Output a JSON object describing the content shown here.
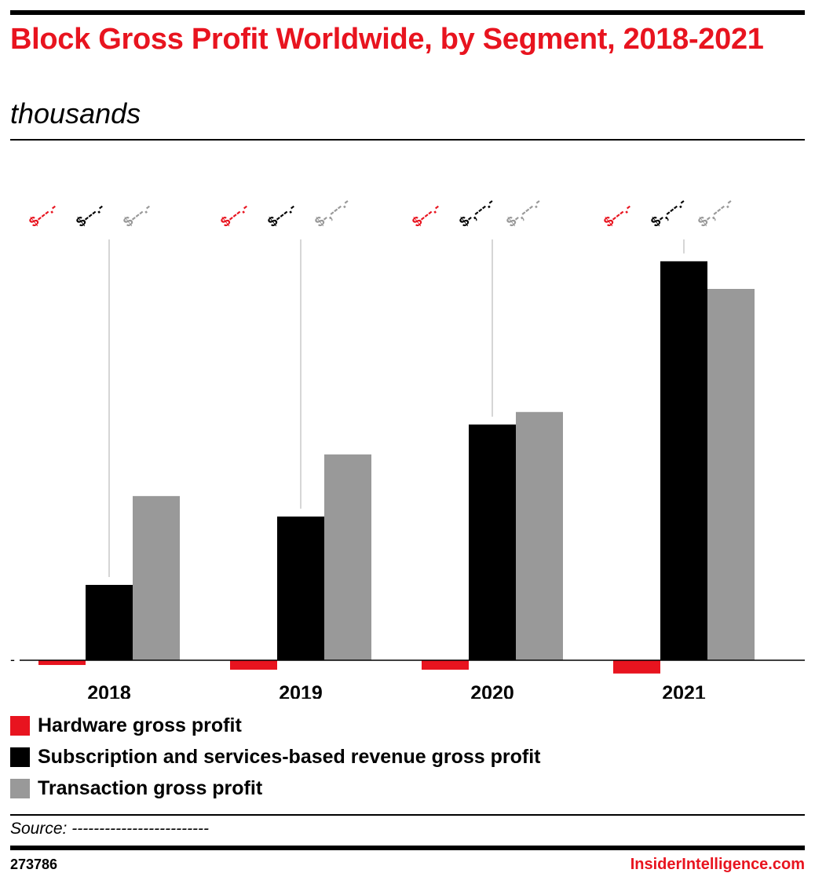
{
  "title": "Block Gross Profit Worldwide, by Segment, 2018-2021",
  "subtitle": "thousands",
  "source": "Source: -------------------------",
  "footer": {
    "id": "273786",
    "brand": "InsiderIntelligence.com"
  },
  "colors": {
    "hardware": "#e8141f",
    "subscription": "#000000",
    "transaction": "#999999"
  },
  "chart_data": {
    "type": "bar",
    "categories": [
      "2018",
      "2019",
      "2020",
      "2021"
    ],
    "y_tick_labels": [
      "-"
    ],
    "series": [
      {
        "name": "Hardware gross profit",
        "color": "#e8141f",
        "values": [
          -25,
          -50,
          -50,
          -70
        ],
        "labels": [
          "$---.-",
          "$---.-",
          "$---.-",
          "$---.-"
        ]
      },
      {
        "name": "Subscription and services-based revenue gross profit",
        "color": "#000000",
        "values": [
          398,
          759,
          1245,
          2107
        ],
        "labels": [
          "$---.-",
          "$---.-",
          "$-,---.-",
          "$-,---.-"
        ]
      },
      {
        "name": "Transaction gross profit",
        "color": "#999999",
        "values": [
          867,
          1087,
          1311,
          1961
        ],
        "labels": [
          "$---.-",
          "$-,---.-",
          "$-,---.-",
          "$-,---.-"
        ]
      }
    ],
    "grid": false,
    "legend_position": "bottom"
  }
}
